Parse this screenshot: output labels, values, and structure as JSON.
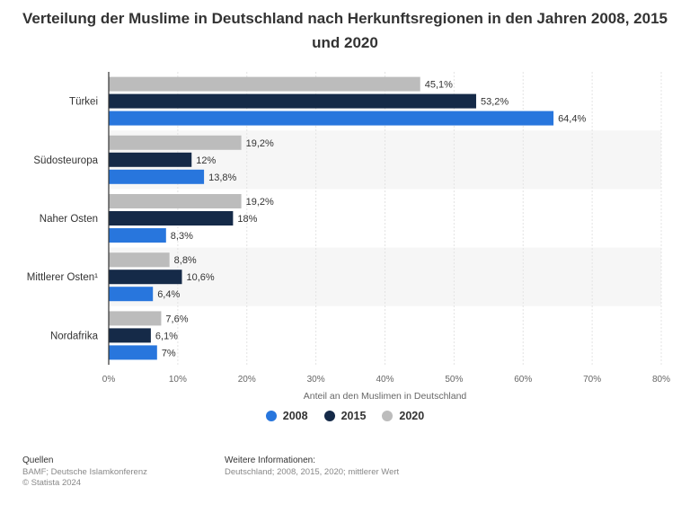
{
  "title": "Verteilung der Muslime in Deutschland nach Herkunftsregionen in den Jahren 2008, 2015 und 2020",
  "colors": {
    "2008": "#2876dd",
    "2015": "#152a48",
    "2020": "#bcbcbc"
  },
  "chart_data": {
    "type": "bar",
    "orientation": "horizontal",
    "title": "Verteilung der Muslime in Deutschland nach Herkunftsregionen in den Jahren 2008, 2015 und 2020",
    "categories": [
      "Türkei",
      "Südosteuropa",
      "Naher Osten",
      "Mittlerer Osten¹",
      "Nordafrika"
    ],
    "series": [
      {
        "name": "2020",
        "values": [
          45.1,
          19.2,
          19.2,
          8.8,
          7.6
        ],
        "labels": [
          "45,1%",
          "19,2%",
          "19,2%",
          "8,8%",
          "7,6%"
        ]
      },
      {
        "name": "2015",
        "values": [
          53.2,
          12,
          18,
          10.6,
          6.1
        ],
        "labels": [
          "53,2%",
          "12%",
          "18%",
          "10,6%",
          "6,1%"
        ]
      },
      {
        "name": "2008",
        "values": [
          64.4,
          13.8,
          8.3,
          6.4,
          7
        ],
        "labels": [
          "64,4%",
          "13,8%",
          "8,3%",
          "6,4%",
          "7%"
        ]
      }
    ],
    "xlabel": "Anteil an den Muslimen in Deutschland",
    "ylabel": "",
    "xlim": [
      0,
      80
    ],
    "ticks": [
      0,
      10,
      20,
      30,
      40,
      50,
      60,
      70,
      80
    ],
    "tick_labels": [
      "0%",
      "10%",
      "20%",
      "30%",
      "40%",
      "50%",
      "60%",
      "70%",
      "80%"
    ],
    "grid": true,
    "legend_position": "bottom-center",
    "legend": [
      "2008",
      "2015",
      "2020"
    ]
  },
  "footer": {
    "sources_heading": "Quellen",
    "sources_line1": "BAMF; Deutsche Islamkonferenz",
    "sources_line2": "© Statista 2024",
    "info_heading": "Weitere Informationen:",
    "info_line1": "Deutschland; 2008, 2015, 2020; mittlerer Wert"
  }
}
